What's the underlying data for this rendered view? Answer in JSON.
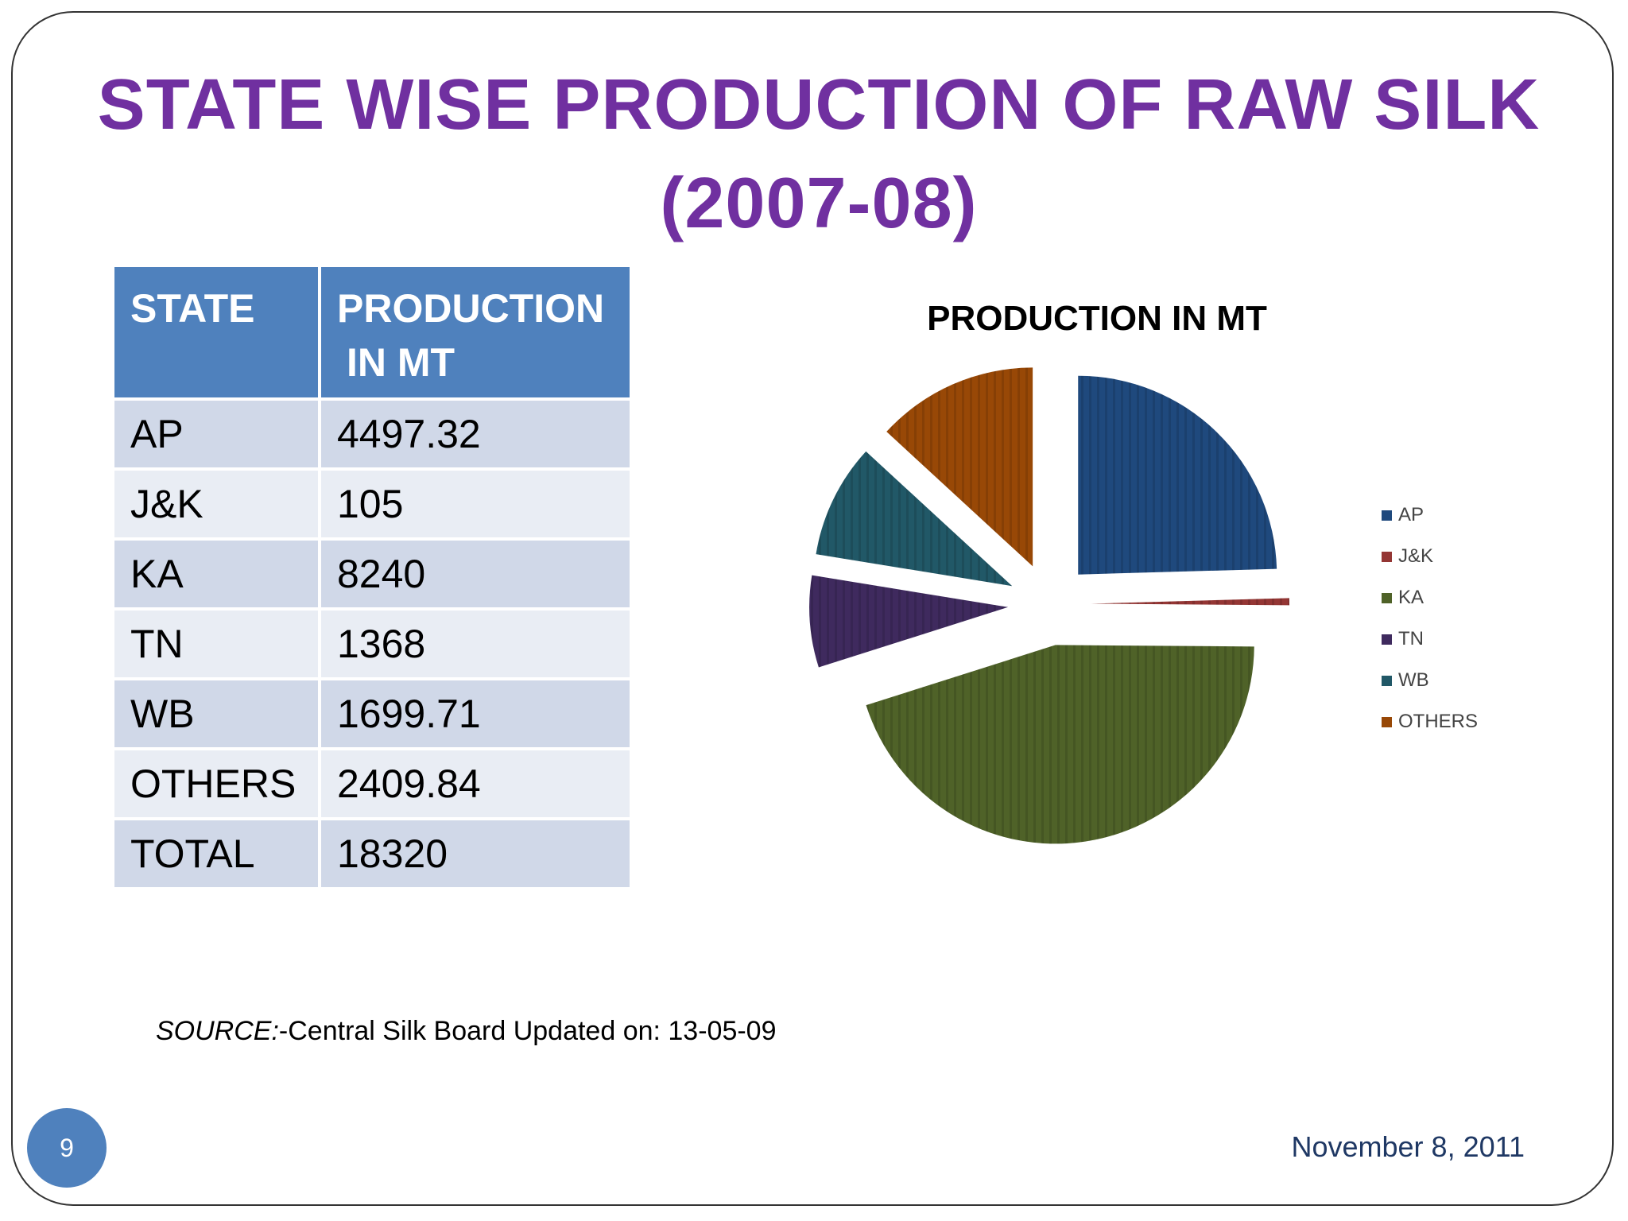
{
  "slide": {
    "title_line1": "STATE WISE PRODUCTION OF RAW SILK",
    "title_line2": "(2007-08)",
    "source_label": "SOURCE:",
    "source_text": "-Central Silk Board Updated on: 13-05-09",
    "page_number": "9",
    "date": "November 8, 2011"
  },
  "table": {
    "headers": [
      "STATE",
      "PRODUCTION",
      "IN MT"
    ],
    "rows": [
      [
        "AP",
        "4497.32"
      ],
      [
        "J&K",
        "105"
      ],
      [
        "KA",
        "8240"
      ],
      [
        "TN",
        "1368"
      ],
      [
        "WB",
        "1699.71"
      ],
      [
        "OTHERS",
        "2409.84"
      ],
      [
        "TOTAL",
        "18320"
      ]
    ]
  },
  "colors": {
    "title": "#7030a0",
    "header": "#4f81bd",
    "row_odd": "#d0d8e8",
    "row_even": "#e9edf4"
  },
  "chart_data": {
    "type": "pie",
    "title": "PRODUCTION  IN MT",
    "categories": [
      "AP",
      "J&K",
      "KA",
      "TN",
      "WB",
      "OTHERS"
    ],
    "values": [
      4497.32,
      105,
      8240,
      1368,
      1699.71,
      2409.84
    ],
    "colors": [
      "#1f497d",
      "#943634",
      "#4f6228",
      "#3f2a5e",
      "#215867",
      "#984806"
    ],
    "exploded": true,
    "legend_position": "right"
  }
}
